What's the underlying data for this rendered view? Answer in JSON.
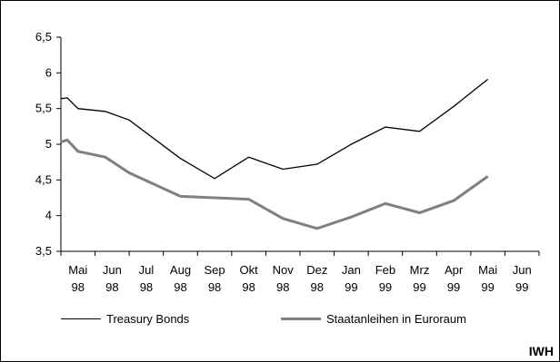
{
  "chart_data": {
    "type": "line",
    "categories": [
      "Mai 98",
      "Jun 98",
      "Jul 98",
      "Aug 98",
      "Sep 98",
      "Okt 98",
      "Nov 98",
      "Dez 98",
      "Jan 99",
      "Feb 99",
      "Mrz 99",
      "Apr 99",
      "Mai 99",
      "Jun 99"
    ],
    "category_lines": [
      [
        "Mai",
        "98"
      ],
      [
        "Jun",
        "98"
      ],
      [
        "Jul",
        "98"
      ],
      [
        "Aug",
        "98"
      ],
      [
        "Sep",
        "98"
      ],
      [
        "Okt",
        "98"
      ],
      [
        "Nov",
        "98"
      ],
      [
        "Dez",
        "98"
      ],
      [
        "Jan",
        "99"
      ],
      [
        "Feb",
        "99"
      ],
      [
        "Mrz",
        "99"
      ],
      [
        "Apr",
        "99"
      ],
      [
        "Mai",
        "99"
      ],
      [
        "Jun",
        "99"
      ]
    ],
    "x": [
      0,
      0.1,
      1,
      1.8,
      2.5,
      4,
      5,
      6,
      7,
      8,
      9,
      10,
      11,
      12,
      13
    ],
    "series": [
      {
        "name": "Treasury Bonds",
        "color": "#000000",
        "values": [
          5.64,
          5.65,
          5.5,
          5.46,
          5.34,
          4.8,
          4.52,
          4.82,
          4.65,
          4.72,
          5.0,
          5.24,
          5.18,
          5.53,
          5.91
        ]
      },
      {
        "name": "Staatanleihen in Euroraum",
        "color": "#808080",
        "values": [
          5.03,
          5.06,
          4.9,
          4.82,
          4.6,
          4.27,
          4.25,
          4.23,
          3.96,
          3.82,
          3.98,
          4.17,
          4.04,
          4.21,
          4.55
        ]
      }
    ],
    "y_ticks": [
      "3,5",
      "4",
      "4,5",
      "5",
      "5,5",
      "6",
      "6,5"
    ],
    "ylim": [
      3.5,
      6.5
    ],
    "grid": false,
    "legend_position": "bottom"
  },
  "source_label": "IWH"
}
